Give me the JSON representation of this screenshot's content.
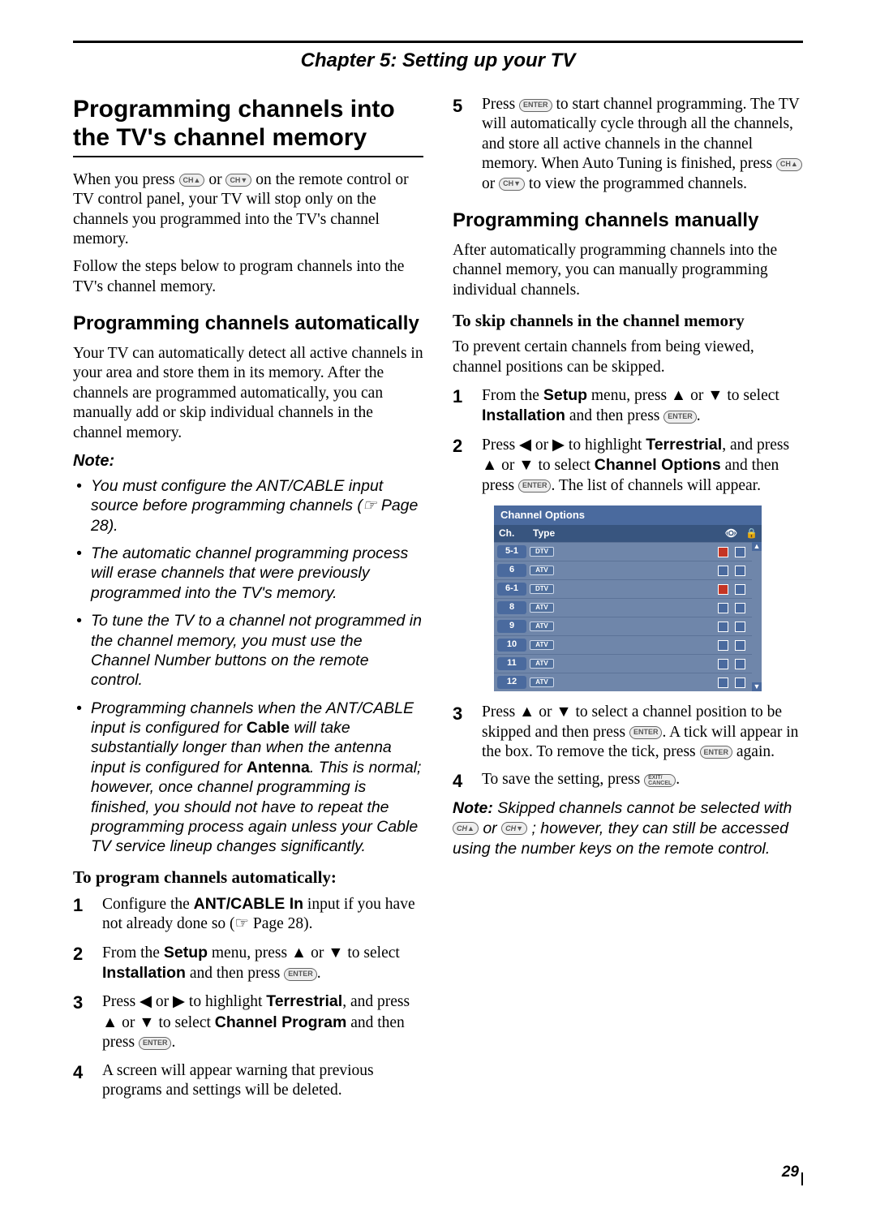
{
  "chapter": "Chapter 5: Setting up your TV",
  "page_number": "29",
  "h1": "Programming channels into the TV's channel memory",
  "intro_p1_a": "When you press ",
  "intro_p1_b": " or ",
  "intro_p1_c": " on the remote control or TV control panel, your TV will stop only on the channels you programmed into the TV's channel memory.",
  "intro_p2": "Follow the steps below to program channels into the TV's channel memory.",
  "h2_auto": "Programming channels automatically",
  "auto_p": "Your TV can automatically detect all active channels in your area and store them in its memory. After the channels are programmed automatically, you can manually add or skip individual channels in the channel memory.",
  "note_label": "Note:",
  "notes": [
    {
      "pre": "You must configure the ANT/CABLE input source before programming channels (",
      "post": " Page 28)."
    },
    {
      "text": "The automatic channel programming process will erase channels that were previously programmed into the TV's memory."
    },
    {
      "text": "To tune the TV to a channel not programmed in the channel memory, you must use the Channel Number buttons on the remote control."
    },
    {
      "pre": "Programming channels when the ANT/CABLE input is configured for ",
      "b1": "Cable",
      "mid": " will take substantially longer than when the antenna input is configured for ",
      "b2": "Antenna",
      "post": ". This is normal; however, once channel programming is finished, you should not have to repeat the programming process again unless your Cable TV service lineup changes significantly."
    }
  ],
  "h3_autoprog": "To program channels automatically:",
  "auto_steps": {
    "s1_a": "Configure the ",
    "s1_b": "ANT/CABLE In",
    "s1_c": " input if you have not already done so (",
    "s1_d": " Page 28).",
    "s2_a": "From the ",
    "s2_b": "Setup",
    "s2_c": " menu, press ▲ or ▼ to select ",
    "s2_d": "Installation",
    "s2_e": " and then press ",
    "s3_a": "Press ◀ or ▶ to highlight ",
    "s3_b": "Terrestrial",
    "s3_c": ", and press ▲ or ▼ to select ",
    "s3_d": "Channel Program",
    "s3_e": " and then press ",
    "s4": "A screen will appear warning that previous programs and settings will be deleted.",
    "s5_a": "Press ",
    "s5_b": " to start channel programming. The TV will automatically cycle through all the channels, and store all active channels in the channel memory. When Auto Tuning is finished, press ",
    "s5_c": " or ",
    "s5_d": " to view the programmed channels."
  },
  "h2_manual": "Programming channels manually",
  "manual_p": "After automatically programming channels into the channel memory, you can manually programming individual channels.",
  "h3_skip": "To skip channels in the channel memory",
  "skip_p": "To prevent certain channels from being viewed, channel positions can be skipped.",
  "manual_steps": {
    "s1_a": "From the ",
    "s1_b": "Setup",
    "s1_c": " menu, press ▲ or ▼ to select ",
    "s1_d": "Installation",
    "s1_e": " and then press ",
    "s2_a": "Press ◀ or ▶ to highlight ",
    "s2_b": "Terrestrial",
    "s2_c": ", and press ▲ or ▼ to select ",
    "s2_d": "Channel Options",
    "s2_e": " and then press ",
    "s2_f": ". The list of channels will appear.",
    "s3_a": "Press ▲ or ▼ to select a channel position to be skipped and then press ",
    "s3_b": ". A tick will appear in the box. To remove the tick, press ",
    "s3_c": " again.",
    "s4_a": "To save the setting, press "
  },
  "osd": {
    "title": "Channel Options",
    "col_ch": "Ch.",
    "col_type": "Type",
    "rows": [
      {
        "ch": "5-1",
        "type": "DTV",
        "red": [
          true,
          false
        ]
      },
      {
        "ch": "6",
        "type": "ATV",
        "red": [
          false,
          false
        ]
      },
      {
        "ch": "6-1",
        "type": "DTV",
        "red": [
          true,
          false
        ]
      },
      {
        "ch": "8",
        "type": "ATV",
        "red": [
          false,
          false
        ]
      },
      {
        "ch": "9",
        "type": "ATV",
        "red": [
          false,
          false
        ]
      },
      {
        "ch": "10",
        "type": "ATV",
        "red": [
          false,
          false
        ]
      },
      {
        "ch": "11",
        "type": "ATV",
        "red": [
          false,
          false
        ]
      },
      {
        "ch": "12",
        "type": "ATV",
        "red": [
          false,
          false
        ]
      }
    ],
    "colors": {
      "header": "#38557f",
      "title": "#4a6a9e",
      "row": "#6f86aa",
      "red": "#c53524"
    }
  },
  "final_note_a": "Note:",
  "final_note_b": " Skipped channels cannot be selected with ",
  "final_note_c": " or ",
  "final_note_d": " ; however, they can still be accessed using the number keys on the remote control.",
  "icons": {
    "ch_up": "CH▲",
    "ch_down": "CH▼",
    "enter": "ENTER",
    "exit": "EXIT/\nCANCEL",
    "pointer": "☞",
    "eye": "👁",
    "lock": "🔒"
  }
}
